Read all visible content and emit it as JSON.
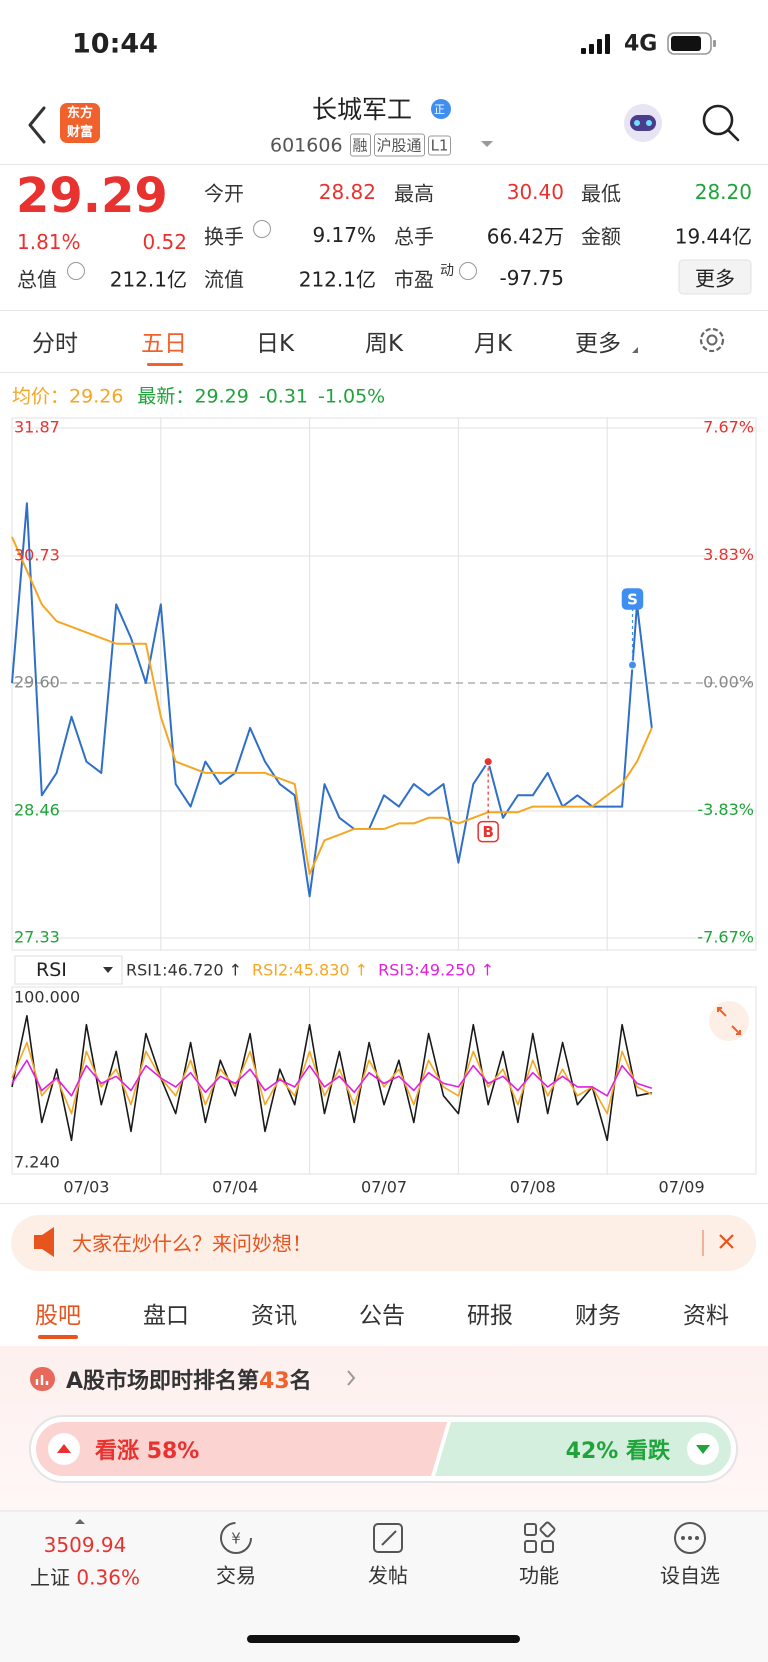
{
  "status": {
    "time": "10:44",
    "network": "4G"
  },
  "header": {
    "logo": [
      "东方",
      "财富"
    ],
    "name": "长城军工",
    "badge": "正",
    "code": "601606",
    "tags": [
      "融",
      "沪股通",
      "L1"
    ]
  },
  "quote": {
    "price": "29.29",
    "change_pct": "1.81%",
    "change": "0.52",
    "fields": [
      {
        "label": "今开",
        "value": "28.82",
        "color": "#e8322f"
      },
      {
        "label": "最高",
        "value": "30.40",
        "color": "#e8322f"
      },
      {
        "label": "最低",
        "value": "28.20",
        "color": "#1fa33a"
      },
      {
        "label": "换手",
        "value": "9.17%"
      },
      {
        "label": "总手",
        "value": "66.42万"
      },
      {
        "label": "金额",
        "value": "19.44亿"
      },
      {
        "label": "总值",
        "value": "212.1亿"
      },
      {
        "label": "流值",
        "value": "212.1亿"
      },
      {
        "label": "市盈",
        "sup": "动",
        "value": "-97.75"
      }
    ],
    "more": "更多"
  },
  "tabs": [
    "分时",
    "五日",
    "日K",
    "周K",
    "月K",
    "更多"
  ],
  "info": {
    "avg_label": "均价：",
    "avg": "29.26",
    "latest_label": "最新：",
    "latest": "29.29",
    "diff": "-0.31",
    "pct": "-1.05%"
  },
  "chart_data": [
    {
      "type": "line",
      "x": [
        0,
        1,
        2,
        3,
        4,
        5,
        6,
        7,
        8,
        9,
        10,
        11,
        12,
        13,
        14,
        15,
        16,
        17,
        18,
        19,
        20,
        21,
        22,
        23,
        24,
        25,
        26,
        27,
        28,
        29,
        30,
        31,
        32,
        33,
        34,
        35,
        36,
        37,
        38,
        39,
        40,
        41,
        42,
        43
      ],
      "xlim": [
        0,
        50
      ],
      "xgrid": [
        10,
        20,
        30,
        40
      ],
      "ylim": [
        27.33,
        31.87
      ],
      "yticks": [
        31.87,
        30.73,
        {
          "value": 29.6,
          "label": "29.60"
        },
        28.46,
        27.33
      ],
      "y2lim": [
        -7.67,
        7.67
      ],
      "y2ticks": [
        {
          "value": 7.67,
          "label": "7.67%"
        },
        {
          "value": 3.83,
          "label": "3.83%"
        },
        {
          "value": 0,
          "label": "0.00%"
        },
        {
          "value": -3.83,
          "label": "-3.83%"
        },
        {
          "value": -7.67,
          "label": "-7.67%"
        }
      ],
      "series": [
        {
          "color": "#2f6fc8",
          "values": [
            29.6,
            31.2,
            28.6,
            28.8,
            29.3,
            28.9,
            28.8,
            30.3,
            30.0,
            29.6,
            30.3,
            28.7,
            28.5,
            28.9,
            28.7,
            28.8,
            29.2,
            28.9,
            28.7,
            28.6,
            27.7,
            28.7,
            28.4,
            28.3,
            28.3,
            28.6,
            28.5,
            28.7,
            28.6,
            28.7,
            28.0,
            28.7,
            28.9,
            28.4,
            28.6,
            28.6,
            28.8,
            28.5,
            28.6,
            28.5,
            28.5,
            28.5,
            30.3,
            29.2
          ]
        },
        {
          "color": "#f5a623",
          "values": [
            30.9,
            30.6,
            30.3,
            30.15,
            30.1,
            30.05,
            30.0,
            29.95,
            29.95,
            29.95,
            29.3,
            28.9,
            28.85,
            28.8,
            28.8,
            28.8,
            28.8,
            28.8,
            28.75,
            28.7,
            27.9,
            28.2,
            28.25,
            28.3,
            28.3,
            28.3,
            28.35,
            28.35,
            28.4,
            28.4,
            28.35,
            28.4,
            28.45,
            28.45,
            28.45,
            28.5,
            28.5,
            28.5,
            28.5,
            28.5,
            28.6,
            28.7,
            28.9,
            29.2
          ]
        }
      ],
      "markers": [
        {
          "label": "B",
          "x": 32,
          "value": 28.9,
          "color": "#e8322f"
        },
        {
          "label": "S",
          "x": 41.7,
          "value": 29.76,
          "color": "#3f8ef0"
        }
      ]
    },
    {
      "type": "line",
      "indicator": "RSI",
      "x": [
        0,
        1,
        2,
        3,
        4,
        5,
        6,
        7,
        8,
        9,
        10,
        11,
        12,
        13,
        14,
        15,
        16,
        17,
        18,
        19,
        20,
        21,
        22,
        23,
        24,
        25,
        26,
        27,
        28,
        29,
        30,
        31,
        32,
        33,
        34,
        35,
        36,
        37,
        38,
        39,
        40,
        41,
        42,
        43
      ],
      "xlim": [
        0,
        50
      ],
      "xgrid": [
        10,
        20,
        30,
        40
      ],
      "xticks": [
        {
          "value": 5,
          "label": "07/03"
        },
        {
          "value": 15,
          "label": "07/04"
        },
        {
          "value": 25,
          "label": "07/07"
        },
        {
          "value": 35,
          "label": "07/08"
        },
        {
          "value": 45,
          "label": "07/09"
        }
      ],
      "ylim": [
        7.24,
        100
      ],
      "yticks": [
        {
          "value": 100,
          "label": "100.000"
        },
        {
          "value": 7.24,
          "label": "7.240"
        }
      ],
      "series": [
        {
          "name": "RSI1:46.720 ↑",
          "color": "#1a1a1a",
          "values": [
            50,
            90,
            30,
            60,
            20,
            85,
            40,
            70,
            25,
            80,
            55,
            35,
            75,
            30,
            65,
            45,
            80,
            25,
            60,
            40,
            85,
            35,
            70,
            30,
            75,
            40,
            65,
            30,
            80,
            45,
            35,
            85,
            40,
            70,
            30,
            80,
            35,
            75,
            40,
            50,
            20,
            85,
            45,
            46.72
          ]
        },
        {
          "name": "RSI2:45.830 ↑",
          "color": "#f5a623",
          "values": [
            55,
            75,
            45,
            55,
            35,
            70,
            50,
            60,
            40,
            70,
            55,
            45,
            65,
            40,
            60,
            50,
            70,
            40,
            55,
            45,
            70,
            45,
            60,
            40,
            65,
            50,
            60,
            40,
            65,
            50,
            45,
            70,
            50,
            60,
            40,
            65,
            45,
            60,
            45,
            50,
            35,
            70,
            50,
            45.83
          ]
        },
        {
          "name": "RSI3:49.250 ↑",
          "color": "#e020e0",
          "values": [
            52,
            65,
            48,
            55,
            45,
            62,
            52,
            56,
            48,
            62,
            55,
            50,
            58,
            47,
            56,
            52,
            60,
            48,
            54,
            50,
            62,
            50,
            56,
            47,
            58,
            52,
            56,
            48,
            58,
            52,
            50,
            62,
            52,
            56,
            48,
            58,
            50,
            56,
            50,
            50,
            45,
            62,
            52,
            49.25
          ]
        }
      ]
    }
  ],
  "banner": {
    "text": "大家在炒什么？来问妙想！"
  },
  "sections": [
    "股吧",
    "盘口",
    "资讯",
    "公告",
    "研报",
    "财务",
    "资料"
  ],
  "ranking": {
    "prefix": "A股市场即时排名第",
    "rank": "43",
    "suffix": "名"
  },
  "sentiment": {
    "up": {
      "label": "看涨",
      "value": 58,
      "value_label": "58%"
    },
    "down": {
      "label": "看跌",
      "value": 42,
      "value_label": "42%"
    }
  },
  "nav": {
    "index": {
      "value": "3509.94",
      "name": "上证",
      "change": "0.36%"
    },
    "items": [
      "交易",
      "发帖",
      "功能",
      "设自选"
    ]
  }
}
